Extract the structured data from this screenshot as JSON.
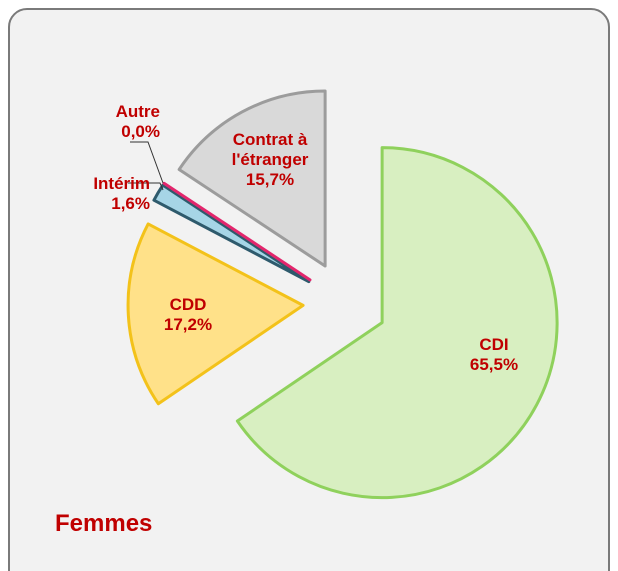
{
  "chart_data": {
    "type": "pie",
    "title": "Femmes",
    "categories": [
      "CDI",
      "CDD",
      "Intérim",
      "Autre",
      "Contrat à l'étranger"
    ],
    "values": [
      65.5,
      17.2,
      1.6,
      0.0,
      15.7
    ],
    "value_labels": [
      "65,5%",
      "17,2%",
      "1,6%",
      "0,0%",
      "15,7%"
    ],
    "colors": [
      "#d8efc1",
      "#ffe189",
      "#a6d5e6",
      "#f0f0f0",
      "#d9d9d9"
    ],
    "edge_colors": [
      "#8fd15c",
      "#f3c21a",
      "#2e5a6c",
      "#e3266c",
      "#9c9c9c"
    ]
  }
}
